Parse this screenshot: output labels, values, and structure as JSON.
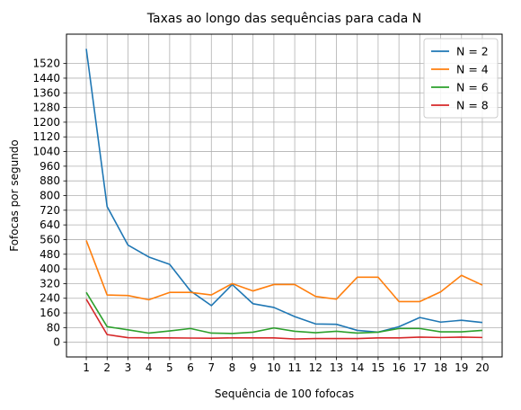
{
  "chart_data": {
    "type": "line",
    "title": "Taxas ao longo das sequências para cada N",
    "xlabel": "Sequência de 100 fofocas",
    "ylabel": "Fofocas por segundo",
    "x": [
      1,
      2,
      3,
      4,
      5,
      6,
      7,
      8,
      9,
      10,
      11,
      12,
      13,
      14,
      15,
      16,
      17,
      18,
      19,
      20
    ],
    "x_ticks": [
      1,
      2,
      3,
      4,
      5,
      6,
      7,
      8,
      9,
      10,
      11,
      12,
      13,
      14,
      15,
      16,
      17,
      18,
      19,
      20
    ],
    "y_ticks": [
      0,
      80,
      160,
      240,
      320,
      400,
      480,
      560,
      640,
      720,
      800,
      880,
      960,
      1040,
      1120,
      1200,
      1280,
      1360,
      1440,
      1520
    ],
    "xlim": [
      0.05,
      20.95
    ],
    "ylim": [
      -80,
      1680
    ],
    "grid": true,
    "legend_position": "top-right",
    "series": [
      {
        "name": "N = 2",
        "color": "#1f77b4",
        "values": [
          1600,
          740,
          530,
          465,
          425,
          280,
          200,
          315,
          210,
          190,
          140,
          100,
          98,
          65,
          55,
          85,
          135,
          110,
          120,
          108
        ]
      },
      {
        "name": "N = 4",
        "color": "#ff7f0e",
        "values": [
          555,
          258,
          255,
          232,
          272,
          272,
          258,
          320,
          280,
          315,
          315,
          250,
          235,
          355,
          355,
          222,
          222,
          275,
          365,
          312
        ]
      },
      {
        "name": "N = 6",
        "color": "#2ca02c",
        "values": [
          272,
          85,
          68,
          50,
          62,
          75,
          50,
          48,
          55,
          78,
          60,
          52,
          60,
          50,
          55,
          75,
          75,
          57,
          57,
          65
        ]
      },
      {
        "name": "N = 8",
        "color": "#d62728",
        "values": [
          235,
          42,
          25,
          24,
          24,
          23,
          22,
          24,
          24,
          24,
          18,
          20,
          20,
          20,
          24,
          24,
          28,
          26,
          28,
          26
        ]
      }
    ]
  }
}
